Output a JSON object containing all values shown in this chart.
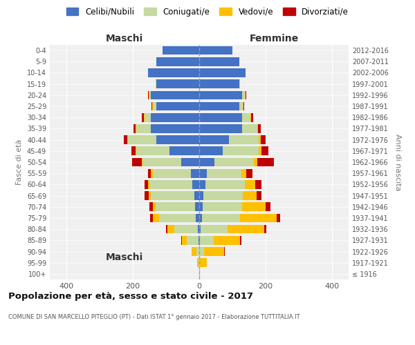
{
  "age_groups": [
    "100+",
    "95-99",
    "90-94",
    "85-89",
    "80-84",
    "75-79",
    "70-74",
    "65-69",
    "60-64",
    "55-59",
    "50-54",
    "45-49",
    "40-44",
    "35-39",
    "30-34",
    "25-29",
    "20-24",
    "15-19",
    "10-14",
    "5-9",
    "0-4"
  ],
  "birth_years": [
    "≤ 1916",
    "1917-1921",
    "1922-1926",
    "1927-1931",
    "1932-1936",
    "1937-1941",
    "1942-1946",
    "1947-1951",
    "1952-1956",
    "1957-1961",
    "1962-1966",
    "1967-1971",
    "1972-1976",
    "1977-1981",
    "1982-1986",
    "1987-1991",
    "1992-1996",
    "1997-2001",
    "2002-2006",
    "2007-2011",
    "2012-2016"
  ],
  "males": {
    "celibi": [
      0,
      0,
      0,
      3,
      5,
      10,
      12,
      15,
      20,
      25,
      55,
      90,
      130,
      145,
      145,
      130,
      145,
      130,
      155,
      130,
      110
    ],
    "coniugati": [
      1,
      2,
      8,
      35,
      70,
      110,
      120,
      130,
      130,
      115,
      115,
      100,
      85,
      45,
      20,
      10,
      5,
      2,
      0,
      0,
      0
    ],
    "vedovi": [
      0,
      5,
      15,
      15,
      20,
      20,
      8,
      8,
      5,
      5,
      2,
      2,
      2,
      2,
      2,
      2,
      2,
      0,
      0,
      0,
      0
    ],
    "divorziati": [
      0,
      0,
      0,
      2,
      5,
      8,
      10,
      12,
      10,
      10,
      30,
      12,
      10,
      5,
      5,
      2,
      2,
      0,
      0,
      0,
      0
    ]
  },
  "females": {
    "nubili": [
      0,
      0,
      0,
      3,
      5,
      8,
      10,
      12,
      18,
      22,
      45,
      70,
      90,
      130,
      130,
      120,
      130,
      120,
      140,
      120,
      100
    ],
    "coniugate": [
      1,
      3,
      15,
      40,
      80,
      115,
      120,
      120,
      120,
      105,
      120,
      110,
      90,
      45,
      25,
      12,
      8,
      3,
      0,
      0,
      0
    ],
    "vedove": [
      1,
      20,
      60,
      80,
      110,
      110,
      70,
      40,
      30,
      15,
      10,
      8,
      5,
      3,
      2,
      2,
      2,
      0,
      0,
      0,
      0
    ],
    "divorziate": [
      0,
      0,
      2,
      5,
      8,
      10,
      15,
      15,
      20,
      18,
      50,
      20,
      15,
      8,
      5,
      2,
      2,
      0,
      0,
      0,
      0
    ]
  },
  "colors": {
    "celibi": "#4472c4",
    "coniugati": "#c5d9a0",
    "vedovi": "#ffc000",
    "divorziati": "#c00000"
  },
  "title": "Popolazione per età, sesso e stato civile - 2017",
  "subtitle": "COMUNE DI SAN MARCELLO PITEGLIO (PT) - Dati ISTAT 1° gennaio 2017 - Elaborazione TUTTITALIA.IT",
  "ylabel_left": "Fasce di età",
  "ylabel_right": "Anni di nascita",
  "xlim": 450,
  "legend_labels": [
    "Celibi/Nubili",
    "Coniugati/e",
    "Vedovi/e",
    "Divorziati/e"
  ],
  "maschi_label": "Maschi",
  "femmine_label": "Femmine",
  "bg_color": "#f0f0f0"
}
